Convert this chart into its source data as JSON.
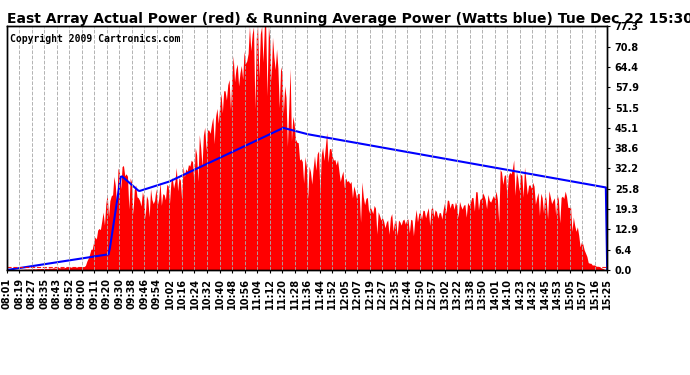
{
  "title": "East Array Actual Power (red) & Running Average Power (Watts blue) Tue Dec 22 15:30",
  "copyright": "Copyright 2009 Cartronics.com",
  "yticks": [
    0.0,
    6.4,
    12.9,
    19.3,
    25.8,
    32.2,
    38.6,
    45.1,
    51.5,
    57.9,
    64.4,
    70.8,
    77.3
  ],
  "ymax": 77.3,
  "ymin": 0.0,
  "bar_color": "red",
  "avg_color": "blue",
  "bg_color": "white",
  "grid_color": "#aaaaaa",
  "title_fontsize": 10,
  "copyright_fontsize": 7,
  "tick_fontsize": 7,
  "xtick_labels": [
    "08:01",
    "08:19",
    "08:27",
    "08:35",
    "08:43",
    "08:52",
    "09:00",
    "09:11",
    "09:20",
    "09:30",
    "09:38",
    "09:46",
    "09:54",
    "10:02",
    "10:16",
    "10:24",
    "10:32",
    "10:40",
    "10:48",
    "10:56",
    "11:04",
    "11:12",
    "11:20",
    "11:28",
    "11:36",
    "11:44",
    "11:52",
    "12:05",
    "12:07",
    "12:19",
    "12:27",
    "12:35",
    "12:44",
    "12:50",
    "12:57",
    "13:02",
    "13:22",
    "13:38",
    "13:50",
    "14:01",
    "14:10",
    "14:23",
    "14:32",
    "14:45",
    "14:53",
    "15:05",
    "15:07",
    "15:16",
    "15:25"
  ]
}
